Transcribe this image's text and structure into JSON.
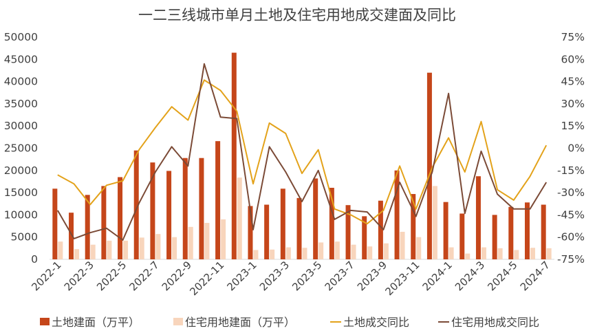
{
  "chart_data": {
    "type": "bar",
    "title": "一二三线城市单月土地及住宅用地成交建面及同比",
    "categories": [
      "2022-1",
      "2022-2",
      "2022-3",
      "2022-4",
      "2022-5",
      "2022-6",
      "2022-7",
      "2022-8",
      "2022-9",
      "2022-10",
      "2022-11",
      "2022-12",
      "2023-1",
      "2023-2",
      "2023-3",
      "2023-4",
      "2023-5",
      "2023-6",
      "2023-7",
      "2023-8",
      "2023-9",
      "2023-10",
      "2023-11",
      "2023-12",
      "2024-1",
      "2024-2",
      "2024-3",
      "2024-4",
      "2024-5",
      "2024-6",
      "2024-7"
    ],
    "x_tick_labels": [
      "2022-1",
      "2022-3",
      "2022-5",
      "2022-7",
      "2022-9",
      "2022-11",
      "2023-1",
      "2023-3",
      "2023-5",
      "2023-7",
      "2023-9",
      "2023-11",
      "2024-1",
      "2024-3",
      "2024-5",
      "2024-7"
    ],
    "y_left_range": [
      0,
      50000
    ],
    "y_left_ticks": [
      "0",
      "5000",
      "10000",
      "15000",
      "20000",
      "25000",
      "30000",
      "35000",
      "40000",
      "45000",
      "50000"
    ],
    "y_right_range": [
      -75,
      75
    ],
    "y_right_ticks": [
      "-75%",
      "-60%",
      "-45%",
      "-30%",
      "-15%",
      "0%",
      "15%",
      "30%",
      "45%",
      "60%",
      "75%"
    ],
    "grid": false,
    "legend_position": "bottom",
    "series": [
      {
        "name": "土地建面（万平）",
        "type": "bar",
        "axis": "left",
        "color": "#C5461A",
        "values": [
          15900,
          10500,
          14500,
          16500,
          18500,
          24500,
          21800,
          19900,
          22800,
          22800,
          26600,
          46500,
          12000,
          12300,
          15900,
          13800,
          18200,
          16100,
          12200,
          9700,
          13200,
          20000,
          14700,
          42000,
          12900,
          10300,
          18700,
          10000,
          11800,
          12800,
          12300
        ]
      },
      {
        "name": "住宅用地建面（万平）",
        "type": "bar",
        "axis": "left",
        "color": "#F8D5BC",
        "values": [
          4000,
          2300,
          3300,
          4200,
          4200,
          4900,
          5700,
          5000,
          7300,
          8200,
          9000,
          18400,
          2100,
          2200,
          2700,
          2600,
          3800,
          4000,
          3300,
          2900,
          3600,
          6200,
          5000,
          16500,
          2700,
          1300,
          2700,
          2500,
          2100,
          2600,
          2500
        ]
      },
      {
        "name": "土地成交同比",
        "type": "line",
        "axis": "right",
        "color": "#E3A21A",
        "values": [
          -18,
          -24,
          -38,
          -25,
          -22,
          -1,
          14,
          28,
          19,
          46,
          39,
          25,
          -24,
          17,
          10,
          -17,
          -1,
          -41,
          -45,
          -51,
          -42,
          -12,
          -41,
          -13,
          7,
          -16,
          18,
          -28,
          -35,
          -19,
          2
        ]
      },
      {
        "name": "住宅用地成交同比",
        "type": "line",
        "axis": "right",
        "color": "#7B4A36",
        "values": [
          -42,
          -61,
          -57,
          -54,
          -62,
          -37,
          -16,
          1,
          -12,
          57,
          21,
          20,
          -55,
          1,
          -16,
          -36,
          -15,
          -48,
          -42,
          -43,
          -55,
          -23,
          -46,
          -16,
          37,
          -44,
          -2,
          -31,
          -41,
          -41,
          -23
        ]
      }
    ]
  }
}
